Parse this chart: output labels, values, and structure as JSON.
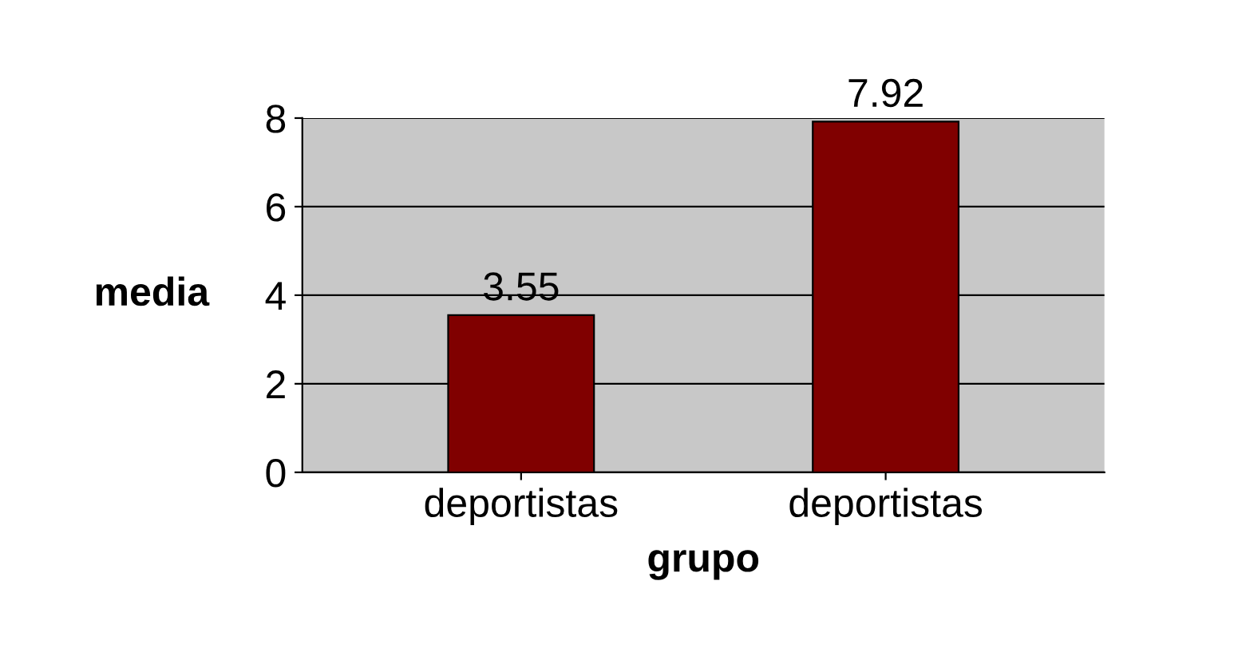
{
  "chart_data": {
    "type": "bar",
    "xlabel": "grupo",
    "ylabel": "media",
    "categories": [
      "deportistas",
      "deportistas"
    ],
    "values": [
      3.55,
      7.92
    ],
    "color": "#800000",
    "ylim": [
      0,
      8
    ],
    "yticks": [
      0,
      2,
      4,
      6,
      8
    ],
    "grid": "y",
    "data_labels": true
  }
}
